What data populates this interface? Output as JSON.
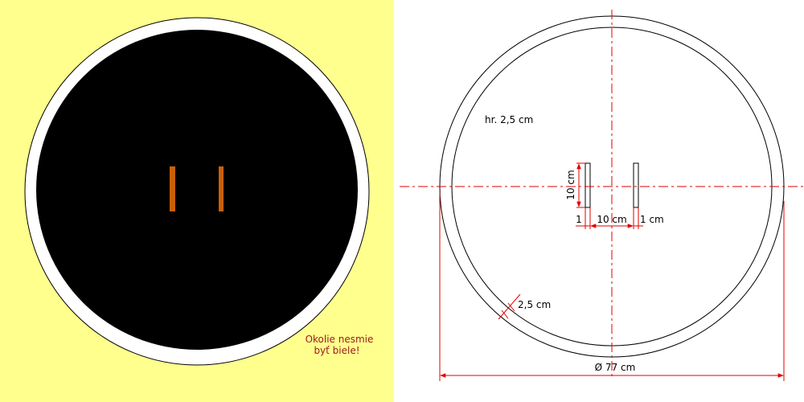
{
  "preview": {
    "note_line1": "Okolie nesmie",
    "note_line2": "byť biele!",
    "colors": {
      "background": "#ffff8e",
      "ring": "#ffffff",
      "disc": "#000000",
      "slot": "#c8600a",
      "note": "#9a1a1a"
    }
  },
  "drawing": {
    "thickness_label": "hr. 2,5 cm",
    "slot_height_label": "10 cm",
    "slot_width_left_label": "1",
    "slot_gap_label": "10 cm",
    "slot_width_right_label": "1 cm",
    "ring_width_label": "2,5 cm",
    "diameter_label": "Ø 77 cm",
    "colors": {
      "outline": "#000000",
      "dimension": "#e00000"
    }
  }
}
